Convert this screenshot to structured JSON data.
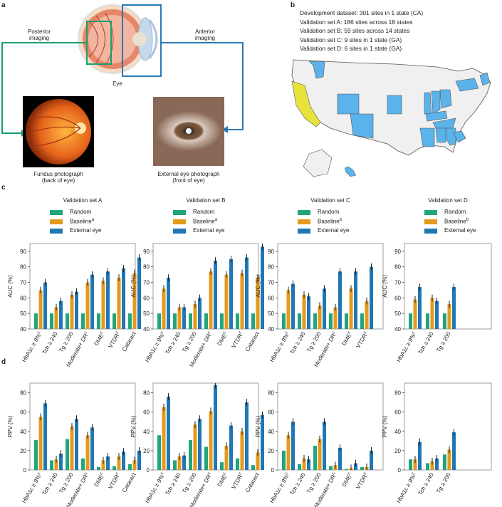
{
  "panels": {
    "a": {
      "label": "a",
      "posterior": "Posterior\nimaging",
      "anterior": "Anterior\nimaging",
      "eye": "Eye",
      "fundus_caption": "Fundus photograph\n(back of eye)",
      "external_caption": "External eye photograph\n(front of eye)"
    },
    "b": {
      "label": "b",
      "lines": [
        "Development dataset: 301 sites in 1 state (CA)",
        "Validation set A: 186 sites across 18 states",
        "Validation set B: 59 sites across 14 states",
        "Validation set C: 9 sites in 1 state (GA)",
        "Validation set D: 6 sites in 1 state (GA)"
      ],
      "colors": {
        "development": "#e8e33c",
        "validation": "#5ab3ea",
        "other": "#f0f0f0"
      }
    },
    "c": {
      "label": "c"
    },
    "d": {
      "label": "d"
    }
  },
  "colors": {
    "random": "#1fa67a",
    "baseline": "#e59a1e",
    "external": "#1f77b4"
  },
  "legend": {
    "random": "Random",
    "baseline": "Baseline",
    "external": "External eye",
    "sup": [
      "a",
      "a",
      "b",
      "b"
    ]
  },
  "chart_data": [
    {
      "type": "bar",
      "title": "Validation set A",
      "ylabel": "AUC (%)",
      "ylim": [
        40,
        95
      ],
      "yticks": [
        40,
        50,
        60,
        70,
        80,
        90
      ],
      "categories": [
        "HbA1c ≥ 9%",
        "Tch ≥ 240",
        "Tg ≥ 200",
        "Moderate+ DR",
        "DME",
        "VTDR",
        "Cataract"
      ],
      "sup": [
        "c",
        "",
        "",
        "c",
        "c",
        "c",
        ""
      ],
      "series": [
        {
          "name": "Random",
          "values": [
            50,
            50,
            50,
            50,
            50,
            50,
            50
          ]
        },
        {
          "name": "Baseline",
          "values": [
            65,
            54,
            62,
            70,
            71,
            73,
            76
          ]
        },
        {
          "name": "External eye",
          "values": [
            70,
            58,
            64,
            75,
            77,
            79,
            86
          ]
        }
      ]
    },
    {
      "type": "bar",
      "title": "Validation set B",
      "ylabel": "AUC (%)",
      "ylim": [
        40,
        95
      ],
      "yticks": [
        40,
        50,
        60,
        70,
        80,
        90
      ],
      "categories": [
        "HbA1c ≥ 9%",
        "Tch ≥ 240",
        "Tg ≥ 200",
        "Moderate+ DR",
        "DME",
        "VTDR",
        "Cataract"
      ],
      "sup": [
        "c",
        "",
        "",
        "c",
        "c",
        "c",
        ""
      ],
      "series": [
        {
          "name": "Random",
          "values": [
            50,
            50,
            50,
            50,
            50,
            50,
            50
          ]
        },
        {
          "name": "Baseline",
          "values": [
            66,
            54,
            56,
            77,
            75,
            76,
            73
          ]
        },
        {
          "name": "External eye",
          "values": [
            73,
            54,
            60,
            84,
            85,
            86,
            93
          ]
        }
      ]
    },
    {
      "type": "bar",
      "title": "Validation set C",
      "ylabel": "AUC (%)",
      "ylim": [
        40,
        95
      ],
      "yticks": [
        40,
        50,
        60,
        70,
        80,
        90
      ],
      "categories": [
        "HbA1c ≥ 9%",
        "Tch ≥ 240",
        "Tg ≥ 200",
        "Moderate+ DR",
        "DME",
        "VTDR"
      ],
      "sup": [
        "c",
        "",
        "",
        "c",
        "c",
        "c"
      ],
      "series": [
        {
          "name": "Random",
          "values": [
            50,
            50,
            50,
            50,
            50,
            50
          ]
        },
        {
          "name": "Baseline",
          "values": [
            65,
            62,
            55,
            54,
            66,
            58
          ]
        },
        {
          "name": "External eye",
          "values": [
            69,
            61,
            66,
            77,
            77,
            80
          ]
        }
      ]
    },
    {
      "type": "bar",
      "title": "Validation set D",
      "ylabel": "AUC (%)",
      "ylim": [
        40,
        95
      ],
      "yticks": [
        40,
        50,
        60,
        70,
        80,
        90
      ],
      "categories": [
        "HbA1c ≥ 9%",
        "Tch ≥ 240",
        "Tg ≥ 200"
      ],
      "sup": [
        "c",
        "",
        ""
      ],
      "series": [
        {
          "name": "Random",
          "values": [
            50,
            50,
            50
          ]
        },
        {
          "name": "Baseline",
          "values": [
            59,
            60,
            56
          ]
        },
        {
          "name": "External eye",
          "values": [
            67,
            58,
            67
          ]
        }
      ]
    },
    {
      "type": "bar",
      "ylabel": "PPV (%)",
      "ylim": [
        0,
        90
      ],
      "yticks": [
        0,
        20,
        40,
        60,
        80
      ],
      "categories": [
        "HbA1c ≥ 9%",
        "Tch ≥ 240",
        "Tg ≥ 200",
        "Moderate+ DR",
        "DME",
        "VTDR",
        "Cataract"
      ],
      "sup": [
        "c",
        "",
        "",
        "c",
        "c",
        "c",
        ""
      ],
      "series": [
        {
          "name": "Random",
          "values": [
            31,
            10,
            32,
            12,
            3,
            4,
            6
          ]
        },
        {
          "name": "Baseline",
          "values": [
            55,
            11,
            45,
            36,
            10,
            14,
            10
          ]
        },
        {
          "name": "External eye",
          "values": [
            69,
            17,
            53,
            44,
            14,
            19,
            20
          ]
        }
      ]
    },
    {
      "type": "bar",
      "ylabel": "PPV (%)",
      "ylim": [
        0,
        90
      ],
      "yticks": [
        0,
        20,
        40,
        60,
        80
      ],
      "categories": [
        "HbA1c ≥ 9%",
        "Tch ≥ 240",
        "Tg ≥ 200",
        "Moderate+ DR",
        "DME",
        "VTDR",
        "Cataract"
      ],
      "sup": [
        "c",
        "",
        "",
        "c",
        "c",
        "c",
        ""
      ],
      "series": [
        {
          "name": "Random",
          "values": [
            36,
            10,
            31,
            24,
            8,
            12,
            5
          ]
        },
        {
          "name": "Baseline",
          "values": [
            65,
            14,
            47,
            61,
            25,
            40,
            18
          ]
        },
        {
          "name": "External eye",
          "values": [
            76,
            15,
            53,
            88,
            46,
            70,
            57
          ]
        }
      ]
    },
    {
      "type": "bar",
      "ylabel": "PPV (%)",
      "ylim": [
        0,
        90
      ],
      "yticks": [
        0,
        20,
        40,
        60,
        80
      ],
      "categories": [
        "HbA1c ≥ 9%",
        "Tch ≥ 240",
        "Tg ≥ 200",
        "Moderate+ DR",
        "DME",
        "VTDR"
      ],
      "sup": [
        "c",
        "",
        "",
        "c",
        "c",
        "c"
      ],
      "series": [
        {
          "name": "Random",
          "values": [
            20,
            6,
            25,
            4,
            1,
            3
          ]
        },
        {
          "name": "Baseline",
          "values": [
            36,
            12,
            32,
            5,
            2,
            3
          ]
        },
        {
          "name": "External eye",
          "values": [
            50,
            11,
            50,
            23,
            7,
            20
          ]
        }
      ]
    },
    {
      "type": "bar",
      "ylabel": "PPV (%)",
      "ylim": [
        0,
        90
      ],
      "yticks": [
        0,
        20,
        40,
        60,
        80
      ],
      "categories": [
        "HbA1c ≥ 9%",
        "Tch ≥ 240",
        "Tg ≥ 200"
      ],
      "sup": [
        "c",
        "",
        ""
      ],
      "series": [
        {
          "name": "Random",
          "values": [
            11,
            7,
            16
          ]
        },
        {
          "name": "Baseline",
          "values": [
            11,
            9,
            21
          ]
        },
        {
          "name": "External eye",
          "values": [
            29,
            12,
            39
          ]
        }
      ]
    }
  ]
}
